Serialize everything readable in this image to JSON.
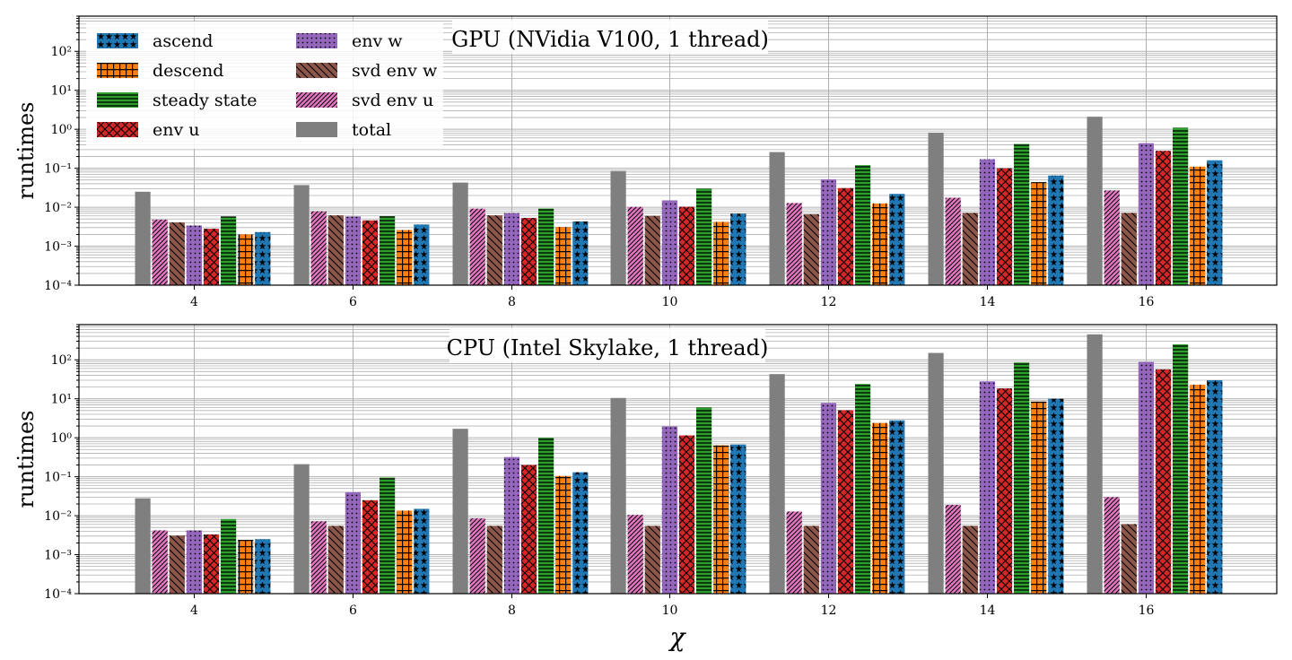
{
  "chart_data": [
    {
      "type": "bar",
      "title": "GPU (NVidia V100, 1 thread)",
      "xlabel": "",
      "ylabel": "runtimes",
      "yscale": "log",
      "ylim": [
        0.0001,
        800
      ],
      "categories": [
        "4",
        "6",
        "8",
        "10",
        "12",
        "14",
        "16"
      ],
      "series": [
        {
          "name": "total",
          "values": [
            0.025,
            0.037,
            0.043,
            0.085,
            0.26,
            0.82,
            2.1
          ]
        },
        {
          "name": "svd env u",
          "values": [
            0.0048,
            0.0078,
            0.0092,
            0.0102,
            0.0128,
            0.0175,
            0.027
          ]
        },
        {
          "name": "svd env w",
          "values": [
            0.0041,
            0.0062,
            0.0062,
            0.006,
            0.0066,
            0.0072,
            0.0072
          ]
        },
        {
          "name": "env w",
          "values": [
            0.0034,
            0.0058,
            0.0071,
            0.015,
            0.052,
            0.17,
            0.44
          ]
        },
        {
          "name": "env u",
          "values": [
            0.0028,
            0.0046,
            0.0053,
            0.0103,
            0.031,
            0.1,
            0.28
          ]
        },
        {
          "name": "steady state",
          "values": [
            0.0058,
            0.0059,
            0.0093,
            0.03,
            0.12,
            0.42,
            1.1
          ]
        },
        {
          "name": "descend",
          "values": [
            0.002,
            0.0026,
            0.0031,
            0.0042,
            0.0125,
            0.044,
            0.11
          ]
        },
        {
          "name": "ascend",
          "values": [
            0.0023,
            0.0036,
            0.0043,
            0.0068,
            0.022,
            0.065,
            0.16
          ]
        }
      ]
    },
    {
      "type": "bar",
      "title": "CPU (Intel Skylake, 1 thread)",
      "xlabel": "χ",
      "ylabel": "runtimes",
      "yscale": "log",
      "ylim": [
        0.0001,
        800
      ],
      "categories": [
        "4",
        "6",
        "8",
        "10",
        "12",
        "14",
        "16"
      ],
      "series": [
        {
          "name": "total",
          "values": [
            0.028,
            0.21,
            1.7,
            10.5,
            43,
            150,
            450
          ]
        },
        {
          "name": "svd env u",
          "values": [
            0.0042,
            0.0072,
            0.0085,
            0.0105,
            0.0128,
            0.019,
            0.03
          ]
        },
        {
          "name": "svd env w",
          "values": [
            0.0031,
            0.0055,
            0.0055,
            0.0055,
            0.0055,
            0.0055,
            0.0061
          ]
        },
        {
          "name": "env w",
          "values": [
            0.0042,
            0.04,
            0.32,
            1.95,
            7.8,
            28,
            88
          ]
        },
        {
          "name": "env u",
          "values": [
            0.0033,
            0.025,
            0.2,
            1.15,
            5.1,
            18.5,
            57
          ]
        },
        {
          "name": "steady state",
          "values": [
            0.0082,
            0.095,
            1.0,
            6.0,
            24,
            85,
            250
          ]
        },
        {
          "name": "descend",
          "values": [
            0.0024,
            0.0135,
            0.105,
            0.64,
            2.4,
            8.5,
            23
          ]
        },
        {
          "name": "ascend",
          "values": [
            0.0025,
            0.015,
            0.13,
            0.67,
            2.8,
            10,
            30
          ]
        }
      ]
    }
  ],
  "ytick_labels": [
    "10⁻⁴",
    "10⁻³",
    "10⁻²",
    "10⁻¹",
    "10⁰",
    "10¹",
    "10²"
  ],
  "legend": [
    {
      "name": "ascend",
      "pattern": "stars",
      "color": "#1f77b4"
    },
    {
      "name": "descend",
      "pattern": "grid",
      "color": "#ff7f0e"
    },
    {
      "name": "steady state",
      "pattern": "hlines",
      "color": "#2ca02c"
    },
    {
      "name": "env u",
      "pattern": "crosshatch",
      "color": "#d62728"
    },
    {
      "name": "env w",
      "pattern": "dots",
      "color": "#9467bd"
    },
    {
      "name": "svd env w",
      "pattern": "backslash",
      "color": "#8c564b"
    },
    {
      "name": "svd env u",
      "pattern": "slash",
      "color": "#e377c2"
    },
    {
      "name": "total",
      "pattern": "solid",
      "color": "#7f7f7f"
    }
  ]
}
